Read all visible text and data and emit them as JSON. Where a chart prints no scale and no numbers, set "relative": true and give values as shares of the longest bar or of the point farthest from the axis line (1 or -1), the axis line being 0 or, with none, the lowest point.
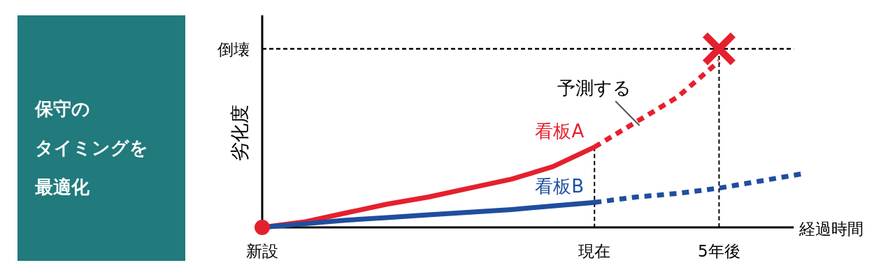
{
  "chart_data": [
    {
      "type": "other",
      "annotations": [
        "保守の",
        "タイミングを",
        "最適化"
      ]
    },
    {
      "type": "line",
      "relative": true,
      "ylabel": "劣化度",
      "xlabel": "経過時間",
      "categories": [
        "新設",
        null,
        null,
        null,
        null,
        null,
        null,
        null,
        "現在",
        null,
        null,
        "5年後",
        null,
        null
      ],
      "series": [
        {
          "name": "看板A",
          "color": "#e5202e",
          "line_style": "solid",
          "values": [
            0,
            0.03,
            0.08,
            0.13,
            0.17,
            0.22,
            0.27,
            0.34,
            0.45,
            null,
            null,
            null,
            null,
            null
          ]
        },
        {
          "color": "#e5202e",
          "line_style": "dotted",
          "values": [
            null,
            null,
            null,
            null,
            null,
            null,
            null,
            null,
            0.45,
            0.59,
            0.73,
            0.93,
            null,
            null
          ]
        },
        {
          "name": "看板B",
          "color": "#1f4e9e",
          "line_style": "solid",
          "values": [
            0,
            0.02,
            0.04,
            0.055,
            0.07,
            0.085,
            0.1,
            0.12,
            0.14,
            null,
            null,
            null,
            null,
            null
          ]
        },
        {
          "color": "#1f4e9e",
          "line_style": "dotted",
          "values": [
            null,
            null,
            null,
            null,
            null,
            null,
            null,
            null,
            0.14,
            0.17,
            0.19,
            0.22,
            0.26,
            0.3
          ]
        },
        {
          "type": "scatter",
          "color": "#e5202e",
          "marker": "circle",
          "values": [
            0,
            null,
            null,
            null,
            null,
            null,
            null,
            null,
            null,
            null,
            null,
            null,
            null,
            null
          ]
        },
        {
          "type": "scatter",
          "color": "#e5202e",
          "marker": "cross",
          "values": [
            null,
            null,
            null,
            null,
            null,
            null,
            null,
            null,
            null,
            null,
            null,
            1,
            null,
            null
          ]
        }
      ],
      "ref_lines": [
        {
          "axis": "y",
          "value": 1,
          "label": "倒壊",
          "line_style": "dotted"
        },
        {
          "axis": "x",
          "value": "現在",
          "line_style": "dotted"
        },
        {
          "axis": "x",
          "value": "5年後",
          "line_style": "dotted"
        }
      ],
      "annotations": [
        "予測する"
      ]
    }
  ]
}
